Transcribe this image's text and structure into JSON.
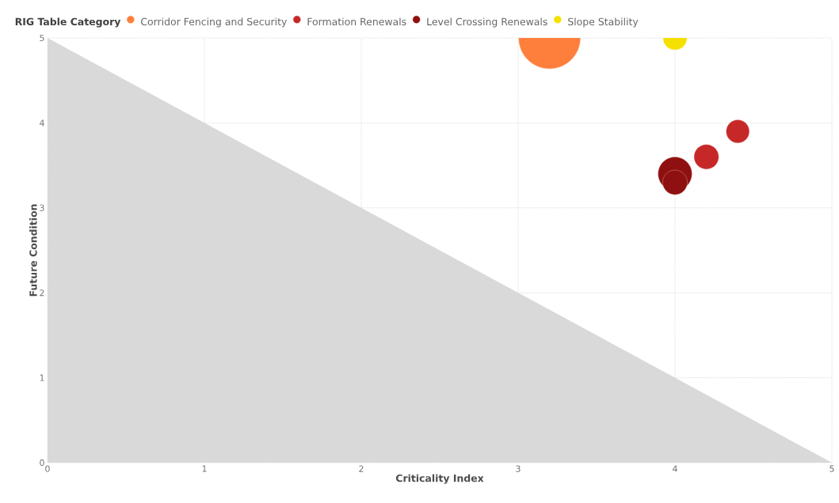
{
  "chart_data": {
    "type": "bubble",
    "xlabel": "Criticality Index",
    "ylabel": "Future Condition",
    "legend_title": "RIG Table Category",
    "xlim": [
      0,
      5
    ],
    "ylim": [
      0,
      5
    ],
    "xticks": [
      0,
      1,
      2,
      3,
      4,
      5
    ],
    "yticks": [
      0,
      1,
      2,
      3,
      4,
      5
    ],
    "grid": true,
    "legend": "top left",
    "series": [
      {
        "type": "area",
        "color": "#d9d9d9",
        "x": [
          0,
          5
        ],
        "values": [
          5,
          0
        ]
      },
      {
        "name": "Corridor Fencing and Security",
        "color": "#fe7f3c",
        "x": [
          3.2
        ],
        "values": [
          5
        ],
        "sizes": [
          1
        ]
      },
      {
        "name": "Formation Renewals",
        "color": "#c62828",
        "x": [
          4.2,
          4.4
        ],
        "values": [
          3.6,
          3.9
        ],
        "sizes": [
          0.16,
          0.14
        ]
      },
      {
        "name": "Level Crossing Renewals",
        "color": "#8f1010",
        "x": [
          4,
          4
        ],
        "values": [
          3.4,
          3.3
        ],
        "sizes": [
          0.3,
          0.16
        ]
      },
      {
        "name": "Slope Stability",
        "color": "#f5e000",
        "x": [
          4
        ],
        "values": [
          5
        ],
        "sizes": [
          0.15
        ]
      }
    ]
  }
}
